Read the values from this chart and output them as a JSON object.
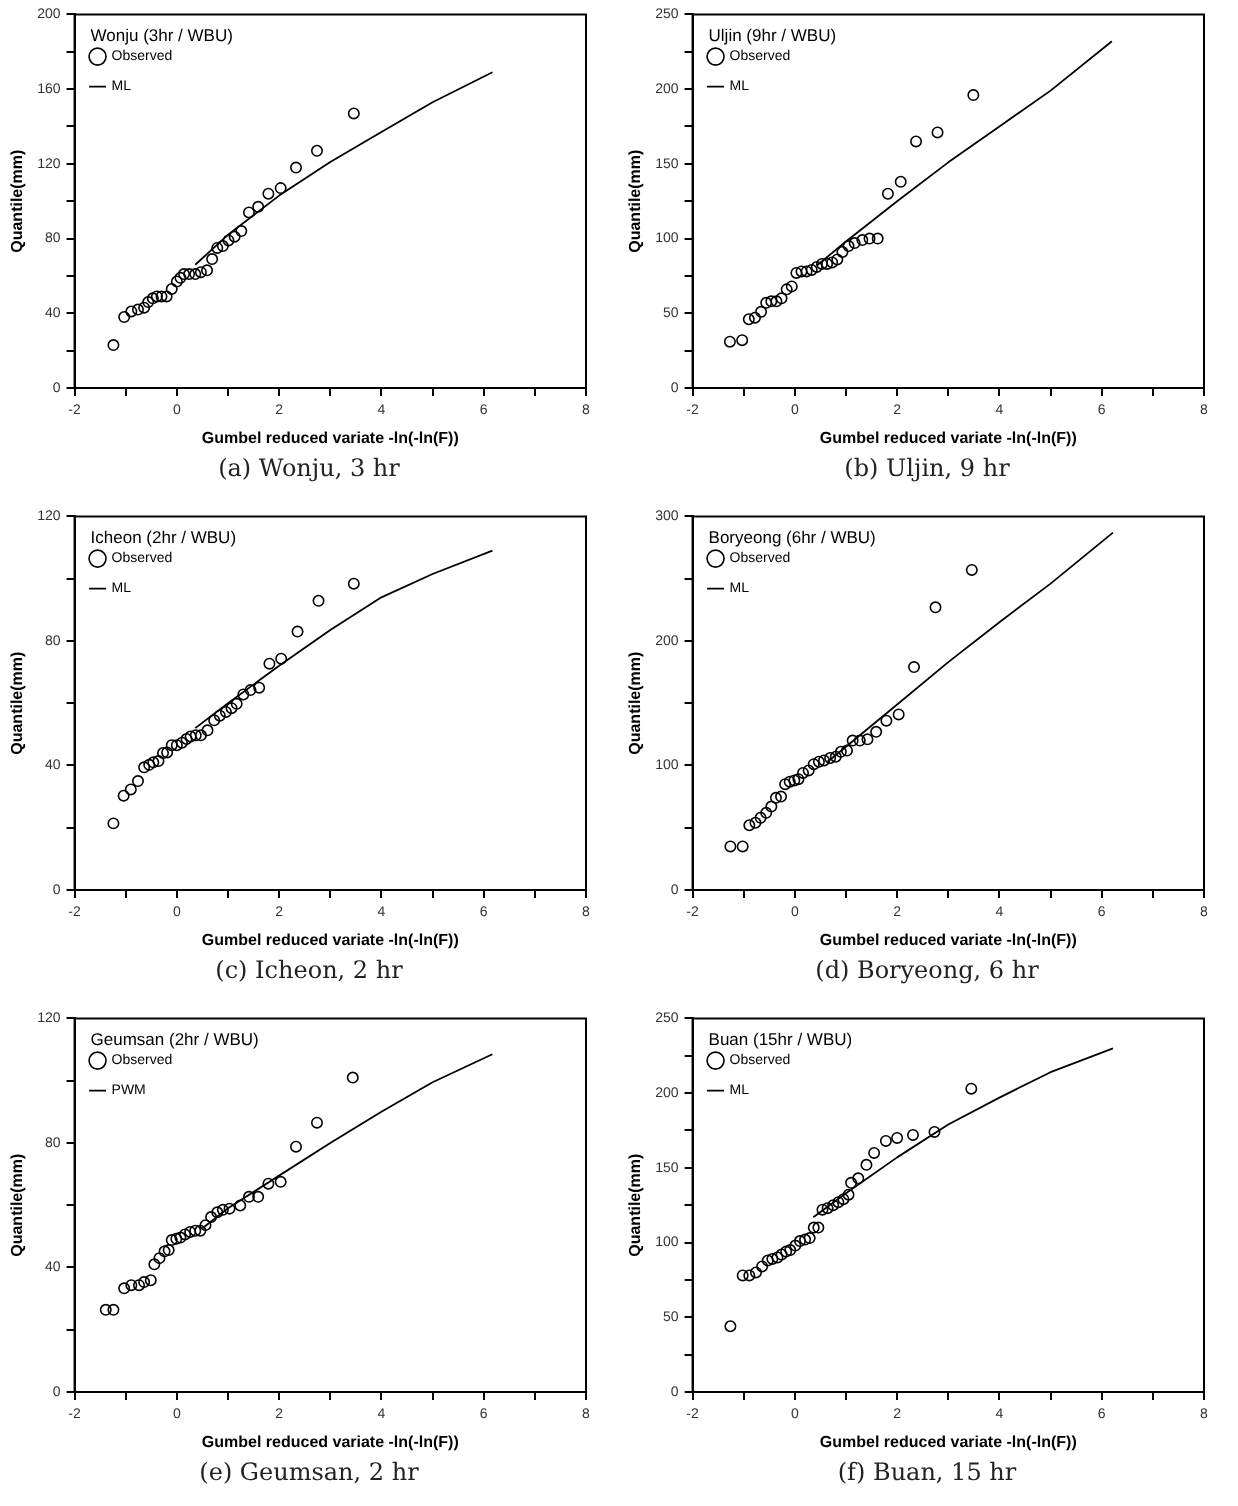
{
  "chart_data": [
    {
      "type": "scatter",
      "title": "Wonju (3hr / WBU)",
      "xlabel": "Gumbel reduced variate -ln(-ln(F))",
      "ylabel": "Quantile(mm)",
      "annotations": [
        "(a)  Wonju,  3 hr"
      ],
      "xlim": [
        -2,
        8
      ],
      "xticks": [
        -2,
        {
          "value": -1,
          "label": null
        },
        0,
        {
          "value": 1,
          "label": null
        },
        2,
        {
          "value": 3,
          "label": null
        },
        4,
        {
          "value": 5,
          "label": null
        },
        6,
        {
          "value": 7,
          "label": null
        },
        8
      ],
      "ylim": [
        0,
        200
      ],
      "yticks": [
        0,
        {
          "value": 20,
          "label": null
        },
        40,
        {
          "value": 60,
          "label": null
        },
        80,
        {
          "value": 100,
          "label": null
        },
        120,
        {
          "value": 140,
          "label": null
        },
        160,
        {
          "value": 180,
          "label": null
        },
        200
      ],
      "legend": "top left",
      "series": [
        {
          "name": "Observed",
          "type": "scatter",
          "marker": "circle",
          "color": "#000000",
          "x": [
            -1.24,
            -1.03,
            -0.89,
            -0.76,
            -0.64,
            -0.56,
            -0.47,
            -0.39,
            -0.3,
            -0.2,
            -0.1,
            0,
            0.07,
            0.14,
            0.24,
            0.36,
            0.47,
            0.59,
            0.69,
            0.79,
            0.9,
            1.01,
            1.13,
            1.26,
            1.41,
            1.59,
            1.79,
            2.03,
            2.33,
            2.74,
            3.46
          ],
          "values": [
            23,
            38,
            41,
            42,
            43,
            46,
            48,
            49,
            49,
            49,
            53,
            57,
            59,
            61,
            61,
            61,
            62,
            63,
            69,
            75,
            76,
            79,
            81,
            84,
            94,
            97,
            104,
            107,
            118,
            127,
            147
          ]
        },
        {
          "name": "ML",
          "type": "line",
          "marker": "none",
          "color": "#000000",
          "x": [
            0.36,
            1,
            2,
            3,
            4,
            5,
            6.17
          ],
          "values": [
            66,
            82,
            103,
            121,
            137,
            153,
            169
          ]
        }
      ]
    },
    {
      "type": "scatter",
      "title": "Uljin (9hr / WBU)",
      "xlabel": "Gumbel reduced variate -ln(-ln(F))",
      "ylabel": "Quantile(mm)",
      "annotations": [
        "(b)  Uljin,  9 hr"
      ],
      "xlim": [
        -2,
        8
      ],
      "xticks": [
        -2,
        {
          "value": -1,
          "label": null
        },
        0,
        {
          "value": 1,
          "label": null
        },
        2,
        {
          "value": 3,
          "label": null
        },
        4,
        {
          "value": 5,
          "label": null
        },
        6,
        {
          "value": 7,
          "label": null
        },
        8
      ],
      "ylim": [
        0,
        250
      ],
      "yticks": [
        0,
        {
          "value": 25,
          "label": null
        },
        50,
        {
          "value": 75,
          "label": null
        },
        100,
        {
          "value": 125,
          "label": null
        },
        150,
        {
          "value": 175,
          "label": null
        },
        200,
        {
          "value": 225,
          "label": null
        },
        250
      ],
      "legend": "top left",
      "series": [
        {
          "name": "Observed",
          "type": "scatter",
          "marker": "circle",
          "color": "#000000",
          "x": [
            -1.27,
            -1.03,
            -0.9,
            -0.78,
            -0.66,
            -0.56,
            -0.46,
            -0.36,
            -0.26,
            -0.16,
            -0.06,
            0.03,
            0.13,
            0.23,
            0.33,
            0.43,
            0.53,
            0.63,
            0.73,
            0.83,
            0.93,
            1.05,
            1.17,
            1.32,
            1.46,
            1.62,
            1.82,
            2.07,
            2.37,
            2.79,
            3.49
          ],
          "values": [
            31,
            32,
            46,
            47,
            51,
            57,
            58,
            58,
            60,
            66,
            68,
            77,
            78,
            78,
            79,
            81,
            83,
            83,
            84,
            86,
            91,
            95,
            97,
            99,
            100,
            100,
            130,
            138,
            165,
            171,
            196
          ]
        },
        {
          "name": "ML",
          "type": "line",
          "marker": "none",
          "color": "#000000",
          "x": [
            0.43,
            1,
            2,
            3,
            4,
            5,
            6.2
          ],
          "values": [
            82,
            98,
            125,
            151,
            175,
            199,
            232
          ]
        }
      ]
    },
    {
      "type": "scatter",
      "title": "Icheon (2hr / WBU)",
      "xlabel": "Gumbel reduced variate -ln(-ln(F))",
      "ylabel": "Quantile(mm)",
      "annotations": [
        "(c)  Icheon,  2 hr"
      ],
      "xlim": [
        -2,
        8
      ],
      "xticks": [
        -2,
        {
          "value": -1,
          "label": null
        },
        0,
        {
          "value": 1,
          "label": null
        },
        2,
        {
          "value": 3,
          "label": null
        },
        4,
        {
          "value": 5,
          "label": null
        },
        6,
        {
          "value": 7,
          "label": null
        },
        8
      ],
      "ylim": [
        0,
        120
      ],
      "yticks": [
        0,
        {
          "value": 20,
          "label": null
        },
        40,
        {
          "value": 60,
          "label": null
        },
        80,
        {
          "value": 100,
          "label": null
        },
        120
      ],
      "legend": "top left",
      "series": [
        {
          "name": "Observed",
          "type": "scatter",
          "marker": "circle",
          "color": "#000000",
          "x": [
            -1.24,
            -1.04,
            -0.9,
            -0.76,
            -0.64,
            -0.54,
            -0.46,
            -0.36,
            -0.27,
            -0.19,
            -0.1,
            0,
            0.1,
            0.19,
            0.27,
            0.37,
            0.47,
            0.6,
            0.73,
            0.84,
            0.96,
            1.07,
            1.17,
            1.3,
            1.44,
            1.61,
            1.81,
            2.04,
            2.36,
            2.77,
            3.46
          ],
          "values": [
            21.4,
            30.3,
            32.3,
            35,
            39.4,
            40.2,
            41,
            41.4,
            44,
            44.2,
            46.5,
            46.5,
            47.3,
            48.5,
            49.3,
            49.7,
            49.7,
            51.3,
            54.5,
            56,
            57.2,
            58.4,
            59.8,
            62.8,
            64.2,
            65,
            72.7,
            74.3,
            83,
            92.9,
            98.4
          ]
        },
        {
          "name": "ML",
          "type": "line",
          "marker": "none",
          "color": "#000000",
          "x": [
            0.36,
            1,
            2,
            3,
            4,
            5,
            6.17
          ],
          "values": [
            52,
            60,
            72,
            83.5,
            94,
            101.5,
            109
          ]
        }
      ]
    },
    {
      "type": "scatter",
      "title": "Boryeong (6hr / WBU)",
      "xlabel": "Gumbel reduced variate -ln(-ln(F))",
      "ylabel": "Quantile(mm)",
      "annotations": [
        "(d)  Boryeong,  6 hr"
      ],
      "xlim": [
        -2,
        8
      ],
      "xticks": [
        -2,
        {
          "value": -1,
          "label": null
        },
        0,
        {
          "value": 1,
          "label": null
        },
        2,
        {
          "value": 3,
          "label": null
        },
        4,
        {
          "value": 5,
          "label": null
        },
        6,
        {
          "value": 7,
          "label": null
        },
        8
      ],
      "ylim": [
        0,
        300
      ],
      "yticks": [
        0,
        {
          "value": 50,
          "label": null
        },
        100,
        {
          "value": 150,
          "label": null
        },
        200,
        {
          "value": 250,
          "label": null
        },
        300
      ],
      "legend": "top left",
      "series": [
        {
          "name": "Observed",
          "type": "scatter",
          "marker": "circle",
          "color": "#000000",
          "x": [
            -1.26,
            -1.02,
            -0.89,
            -0.77,
            -0.67,
            -0.56,
            -0.46,
            -0.37,
            -0.27,
            -0.19,
            -0.1,
            -0.01,
            0.07,
            0.16,
            0.27,
            0.37,
            0.47,
            0.57,
            0.69,
            0.8,
            0.9,
            1.02,
            1.13,
            1.27,
            1.42,
            1.59,
            1.79,
            2.03,
            2.33,
            2.75,
            3.46
          ],
          "values": [
            35,
            35,
            52,
            54,
            58,
            62,
            67,
            74,
            75,
            85,
            87,
            88,
            89,
            94,
            96,
            101,
            103,
            104,
            106,
            107,
            111,
            112,
            120,
            120,
            121,
            127,
            136,
            141,
            179,
            227,
            257
          ]
        },
        {
          "name": "ML",
          "type": "line",
          "marker": "none",
          "color": "#000000",
          "x": [
            0.64,
            1,
            2,
            3,
            4,
            5,
            6.22
          ],
          "values": [
            103,
            115,
            149,
            183,
            215,
            246,
            287
          ]
        }
      ]
    },
    {
      "type": "scatter",
      "title": "Geumsan (2hr / WBU)",
      "xlabel": "Gumbel reduced variate -ln(-ln(F))",
      "ylabel": "Quantile(mm)",
      "annotations": [
        "(e)  Geumsan,  2 hr"
      ],
      "xlim": [
        -2,
        8
      ],
      "xticks": [
        -2,
        {
          "value": -1,
          "label": null
        },
        0,
        {
          "value": 1,
          "label": null
        },
        2,
        {
          "value": 3,
          "label": null
        },
        4,
        {
          "value": 5,
          "label": null
        },
        6,
        {
          "value": 7,
          "label": null
        },
        8
      ],
      "ylim": [
        0,
        120
      ],
      "yticks": [
        0,
        {
          "value": 20,
          "label": null
        },
        40,
        {
          "value": 60,
          "label": null
        },
        80,
        {
          "value": 100,
          "label": null
        },
        120
      ],
      "legend": "top left",
      "series": [
        {
          "name": "Observed",
          "type": "scatter",
          "marker": "circle",
          "color": "#000000",
          "x": [
            -1.39,
            -1.24,
            -1.03,
            -0.89,
            -0.74,
            -0.64,
            -0.51,
            -0.44,
            -0.34,
            -0.24,
            -0.16,
            -0.1,
            -0.01,
            0.07,
            0.16,
            0.26,
            0.36,
            0.46,
            0.56,
            0.67,
            0.79,
            0.9,
            1.03,
            1.24,
            1.41,
            1.59,
            1.79,
            2.03,
            2.33,
            2.74,
            3.44
          ],
          "values": [
            26.4,
            26.4,
            33.3,
            34.3,
            34.3,
            35.3,
            35.9,
            41,
            43,
            45.2,
            45.6,
            48.8,
            49.2,
            49.6,
            50.6,
            51.4,
            51.8,
            51.8,
            53.6,
            56.2,
            57.7,
            58.5,
            58.9,
            59.9,
            62.7,
            62.7,
            66.9,
            67.5,
            78.8,
            86.5,
            101
          ]
        },
        {
          "name": "PWM",
          "type": "line",
          "marker": "none",
          "color": "#000000",
          "x": [
            0.5,
            1,
            2,
            3,
            4,
            5,
            6.17
          ],
          "values": [
            52.6,
            59,
            69.5,
            80,
            90,
            99.5,
            108.5
          ]
        }
      ]
    },
    {
      "type": "scatter",
      "title": "Buan (15hr / WBU)",
      "xlabel": "Gumbel reduced variate -ln(-ln(F))",
      "ylabel": "Quantile(mm)",
      "annotations": [
        "(f)  Buan,  15 hr"
      ],
      "xlim": [
        -2,
        8
      ],
      "xticks": [
        -2,
        {
          "value": -1,
          "label": null
        },
        0,
        {
          "value": 1,
          "label": null
        },
        2,
        {
          "value": 3,
          "label": null
        },
        4,
        {
          "value": 5,
          "label": null
        },
        6,
        {
          "value": 7,
          "label": null
        },
        8
      ],
      "ylim": [
        0,
        250
      ],
      "yticks": [
        0,
        {
          "value": 25,
          "label": null
        },
        50,
        {
          "value": 75,
          "label": null
        },
        100,
        {
          "value": 125,
          "label": null
        },
        150,
        {
          "value": 175,
          "label": null
        },
        200,
        {
          "value": 225,
          "label": null
        },
        250
      ],
      "legend": "top left",
      "series": [
        {
          "name": "Observed",
          "type": "scatter",
          "marker": "circle",
          "color": "#000000",
          "x": [
            -1.26,
            -1.02,
            -0.89,
            -0.76,
            -0.64,
            -0.53,
            -0.44,
            -0.34,
            -0.26,
            -0.17,
            -0.09,
            0.01,
            0.1,
            0.2,
            0.29,
            0.37,
            0.46,
            0.54,
            0.64,
            0.75,
            0.85,
            0.95,
            1.05,
            1.1,
            1.24,
            1.4,
            1.55,
            1.78,
            2,
            2.31,
            2.73,
            3.45
          ],
          "values": [
            44,
            78,
            78,
            80,
            84,
            88,
            89,
            90,
            92,
            94,
            95,
            98,
            101,
            102,
            103,
            110,
            110,
            122,
            123,
            125,
            127,
            129,
            132,
            140,
            143,
            152,
            160,
            168,
            170,
            172,
            174,
            203
          ]
        },
        {
          "name": "ML",
          "type": "line",
          "marker": "none",
          "color": "#000000",
          "x": [
            0.36,
            1,
            2,
            3,
            4,
            5,
            6.22
          ],
          "values": [
            117,
            133,
            157,
            179,
            197,
            214,
            230
          ]
        }
      ]
    }
  ]
}
